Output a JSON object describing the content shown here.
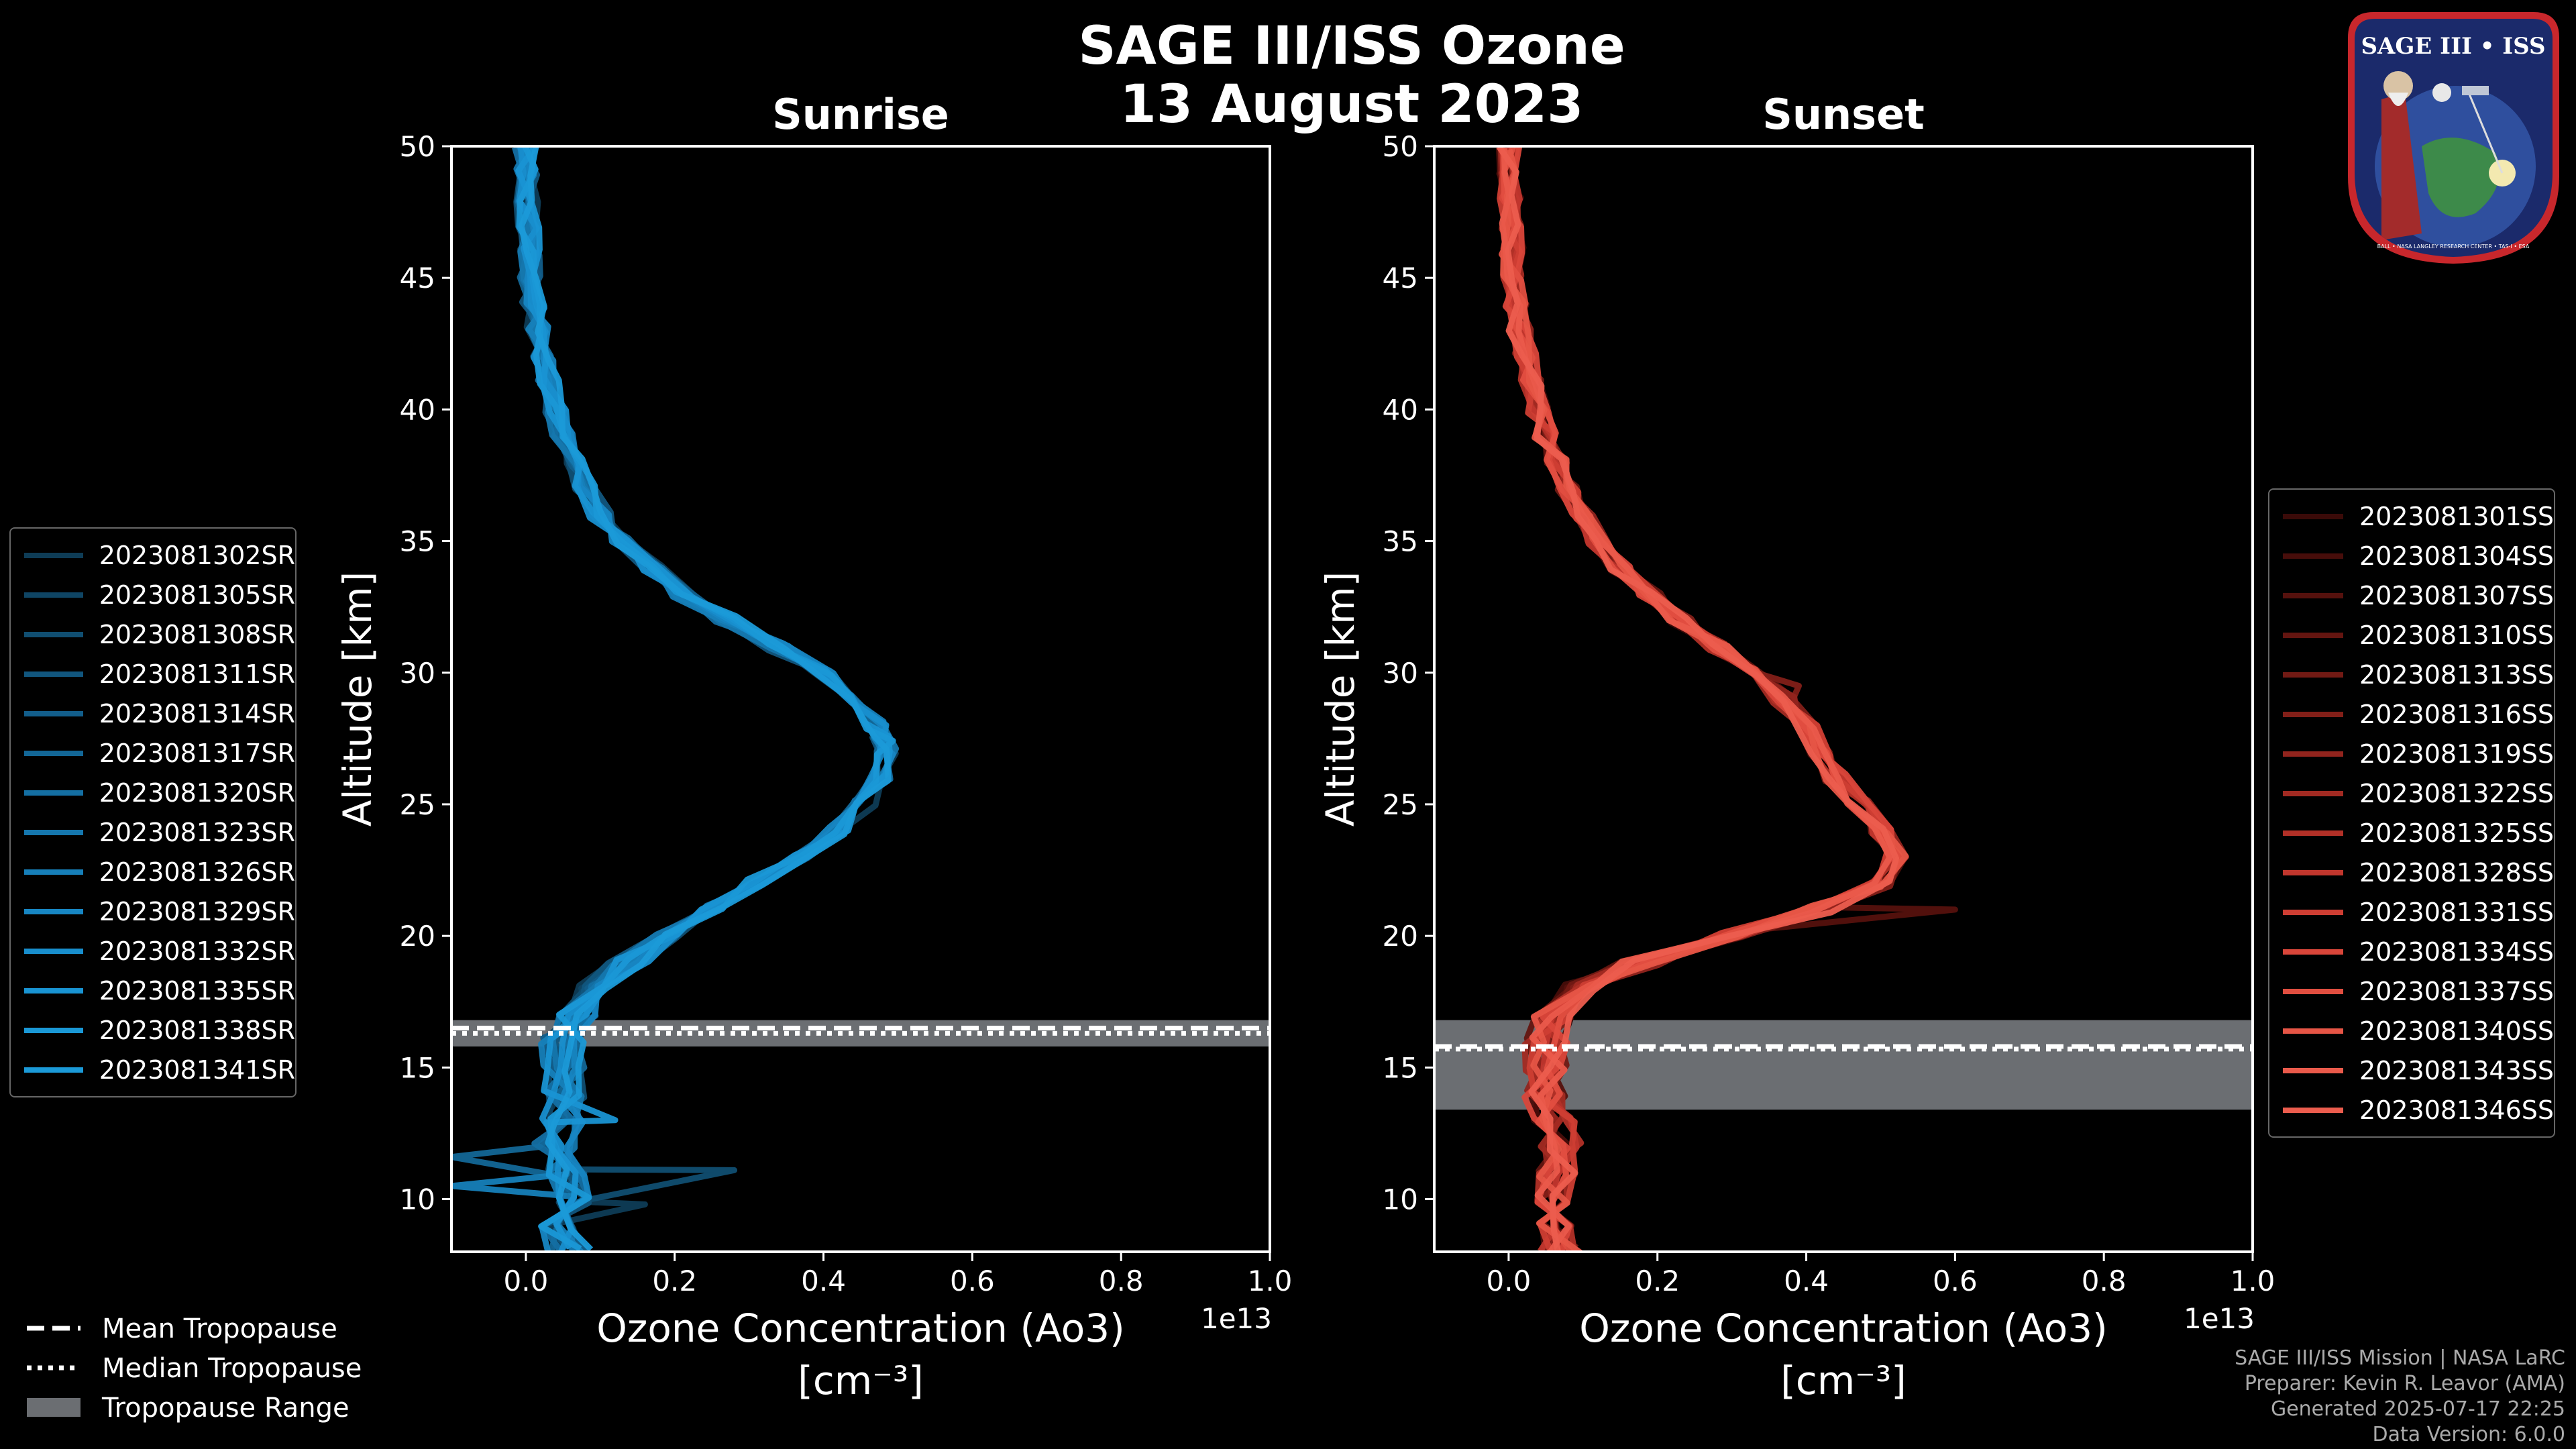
{
  "title_line1": "SAGE III/ISS Ozone",
  "title_line2": "13 August 2023",
  "chart_data": [
    {
      "type": "line",
      "panel": "Sunrise",
      "title": "Sunrise",
      "xlabel_line1": "Ozone Concentration (Ao3)",
      "xlabel_line2": "[cm⁻³]",
      "ylabel": "Altitude [km]",
      "x_offset_label": "1e13",
      "xlim": [
        -0.1,
        1.0
      ],
      "ylim": [
        8,
        50
      ],
      "xticks": [
        0.0,
        0.2,
        0.4,
        0.6,
        0.8,
        1.0
      ],
      "xtick_labels": [
        "0.0",
        "0.2",
        "0.4",
        "0.6",
        "0.8",
        "1.0"
      ],
      "yticks": [
        10,
        15,
        20,
        25,
        30,
        35,
        40,
        45,
        50
      ],
      "ytick_labels": [
        "10",
        "15",
        "20",
        "25",
        "30",
        "35",
        "40",
        "45",
        "50"
      ],
      "tropopause": {
        "mean": 16.5,
        "median": 16.3,
        "range": [
          15.8,
          16.8
        ]
      },
      "profile": {
        "altitudes": [
          8,
          9,
          10,
          11,
          12,
          13,
          14,
          15,
          16,
          17,
          18,
          19,
          20,
          21,
          22,
          23,
          24,
          25,
          26,
          27,
          27.5,
          28,
          29,
          30,
          31,
          32,
          33,
          34,
          35,
          36,
          37,
          38,
          39,
          40,
          41,
          42,
          43,
          44,
          45,
          46,
          47,
          48,
          49,
          50
        ],
        "values": [
          0.06,
          0.05,
          0.06,
          0.05,
          0.04,
          0.05,
          0.05,
          0.05,
          0.05,
          0.07,
          0.1,
          0.14,
          0.19,
          0.25,
          0.31,
          0.37,
          0.42,
          0.455,
          0.475,
          0.485,
          0.48,
          0.47,
          0.44,
          0.4,
          0.34,
          0.27,
          0.21,
          0.17,
          0.13,
          0.1,
          0.08,
          0.065,
          0.05,
          0.04,
          0.03,
          0.022,
          0.015,
          0.01,
          0.007,
          0.005,
          0.003,
          0.002,
          0.001,
          0.0
        ]
      },
      "spikes": [
        {
          "alt": 11.1,
          "value": 0.28
        },
        {
          "alt": 11.6,
          "value": -0.1
        },
        {
          "alt": 10.5,
          "value": -0.1
        },
        {
          "alt": 13.0,
          "value": 0.12
        },
        {
          "alt": 9.8,
          "value": 0.16
        }
      ],
      "series_color": "#1a9ad6",
      "series": [
        {
          "name": "2023081302SR",
          "color": "#0e3c56"
        },
        {
          "name": "2023081305SR",
          "color": "#0f4564"
        },
        {
          "name": "2023081308SR",
          "color": "#104e71"
        },
        {
          "name": "2023081311SR",
          "color": "#11567e"
        },
        {
          "name": "2023081314SR",
          "color": "#125e8b"
        },
        {
          "name": "2023081317SR",
          "color": "#136797"
        },
        {
          "name": "2023081320SR",
          "color": "#146fa3"
        },
        {
          "name": "2023081323SR",
          "color": "#1577ae"
        },
        {
          "name": "2023081326SR",
          "color": "#167fb9"
        },
        {
          "name": "2023081329SR",
          "color": "#1786c3"
        },
        {
          "name": "2023081332SR",
          "color": "#188ecd"
        },
        {
          "name": "2023081335SR",
          "color": "#1994d3"
        },
        {
          "name": "2023081338SR",
          "color": "#1a98d6"
        },
        {
          "name": "2023081341SR",
          "color": "#1b9ad8"
        }
      ]
    },
    {
      "type": "line",
      "panel": "Sunset",
      "title": "Sunset",
      "xlabel_line1": "Ozone Concentration (Ao3)",
      "xlabel_line2": "[cm⁻³]",
      "ylabel": "Altitude [km]",
      "x_offset_label": "1e13",
      "xlim": [
        -0.1,
        1.0
      ],
      "ylim": [
        8,
        50
      ],
      "xticks": [
        0.0,
        0.2,
        0.4,
        0.6,
        0.8,
        1.0
      ],
      "xtick_labels": [
        "0.0",
        "0.2",
        "0.4",
        "0.6",
        "0.8",
        "1.0"
      ],
      "yticks": [
        10,
        15,
        20,
        25,
        30,
        35,
        40,
        45,
        50
      ],
      "ytick_labels": [
        "10",
        "15",
        "20",
        "25",
        "30",
        "35",
        "40",
        "45",
        "50"
      ],
      "tropopause": {
        "mean": 15.8,
        "median": 15.7,
        "range": [
          13.4,
          16.8
        ]
      },
      "profile": {
        "altitudes": [
          8,
          9,
          10,
          11,
          12,
          13,
          14,
          15,
          16,
          17,
          18,
          19,
          20,
          21,
          22,
          23,
          24,
          25,
          26,
          27,
          28,
          29,
          30,
          31,
          32,
          33,
          34,
          35,
          36,
          37,
          38,
          39,
          40,
          41,
          42,
          43,
          44,
          45,
          46,
          47,
          48,
          49,
          50
        ],
        "values": [
          0.07,
          0.07,
          0.06,
          0.07,
          0.07,
          0.06,
          0.05,
          0.05,
          0.05,
          0.06,
          0.1,
          0.18,
          0.3,
          0.42,
          0.5,
          0.52,
          0.5,
          0.47,
          0.44,
          0.42,
          0.4,
          0.37,
          0.33,
          0.28,
          0.23,
          0.19,
          0.15,
          0.12,
          0.1,
          0.08,
          0.065,
          0.05,
          0.04,
          0.03,
          0.022,
          0.015,
          0.01,
          0.007,
          0.005,
          0.003,
          0.002,
          0.001,
          0.0
        ]
      },
      "spikes": [
        {
          "alt": 21.0,
          "value": 0.6
        },
        {
          "alt": 29.5,
          "value": 0.39
        }
      ],
      "series_color": "#e8584a",
      "series": [
        {
          "name": "2023081301SS",
          "color": "#3a0a08"
        },
        {
          "name": "2023081304SS",
          "color": "#470d0a"
        },
        {
          "name": "2023081307SS",
          "color": "#55110d"
        },
        {
          "name": "2023081310SS",
          "color": "#641510"
        },
        {
          "name": "2023081313SS",
          "color": "#721a14"
        },
        {
          "name": "2023081316SS",
          "color": "#821f18"
        },
        {
          "name": "2023081319SS",
          "color": "#92241d"
        },
        {
          "name": "2023081322SS",
          "color": "#a22a22"
        },
        {
          "name": "2023081325SS",
          "color": "#b23027"
        },
        {
          "name": "2023081328SS",
          "color": "#c1362d"
        },
        {
          "name": "2023081331SS",
          "color": "#ce3e33"
        },
        {
          "name": "2023081334SS",
          "color": "#d9463a"
        },
        {
          "name": "2023081337SS",
          "color": "#e14e40"
        },
        {
          "name": "2023081340SS",
          "color": "#e65546"
        },
        {
          "name": "2023081343SS",
          "color": "#ea5a4b"
        },
        {
          "name": "2023081346SS",
          "color": "#ec5d4e"
        }
      ]
    }
  ],
  "bottom_legend": [
    {
      "label": "Mean Tropopause",
      "style": "dashed"
    },
    {
      "label": "Median Tropopause",
      "style": "dotted"
    },
    {
      "label": "Tropopause Range",
      "style": "patch"
    }
  ],
  "credits": [
    "SAGE III/ISS Mission | NASA LaRC",
    "Preparer: Kevin R. Leavor (AMA)",
    "Generated 2025-07-17 22:25",
    "Data Version: 6.0.0"
  ],
  "logo": {
    "title": "SAGE III • ISS",
    "ring_text": "BALL • NASA LANGLEY RESEARCH CENTER • TAS-I • ESA"
  },
  "colors": {
    "background": "#000000",
    "axes": "#ffffff",
    "tropopause_patch": "#6b6e72",
    "logo_ring": "#c8272c",
    "logo_navy": "#1b2a6b"
  }
}
